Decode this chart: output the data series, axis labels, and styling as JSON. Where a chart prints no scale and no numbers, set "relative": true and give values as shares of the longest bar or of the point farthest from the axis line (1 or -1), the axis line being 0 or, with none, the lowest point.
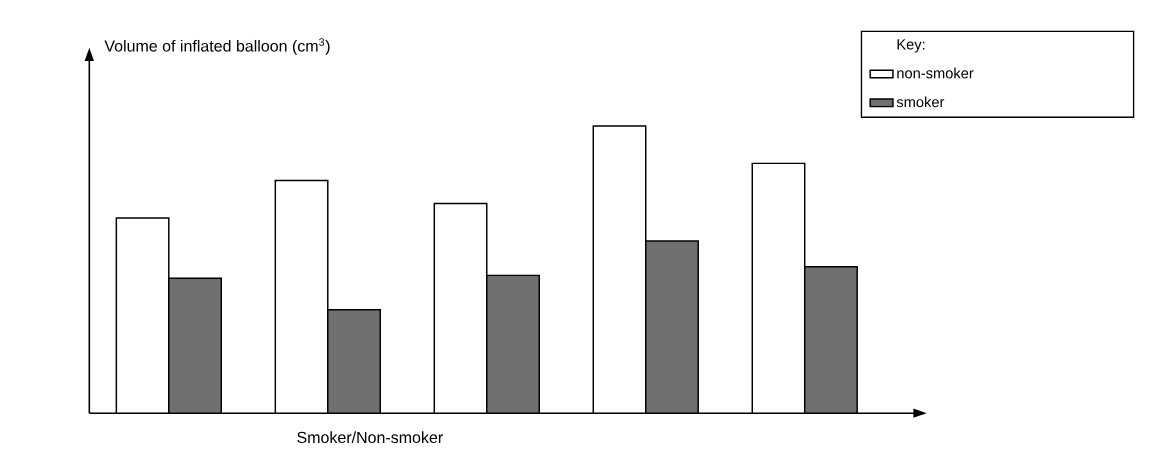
{
  "chart_data": {
    "type": "bar",
    "relative": true,
    "xlabel": "Smoker/Non-smoker",
    "ylabel": "Volume of inflated balloon (cm$^{3}$)",
    "legend_title": "Key:",
    "legend": "top right",
    "categories": [
      null,
      null,
      null,
      null,
      null
    ],
    "series": [
      {
        "name": "non-smoker",
        "color": "#ffffff",
        "values": [
          0.68,
          0.81,
          0.73,
          1.0,
          0.87
        ]
      },
      {
        "name": "smoker",
        "color": "#707070",
        "values": [
          0.47,
          0.36,
          0.48,
          0.6,
          0.51
        ]
      }
    ]
  }
}
